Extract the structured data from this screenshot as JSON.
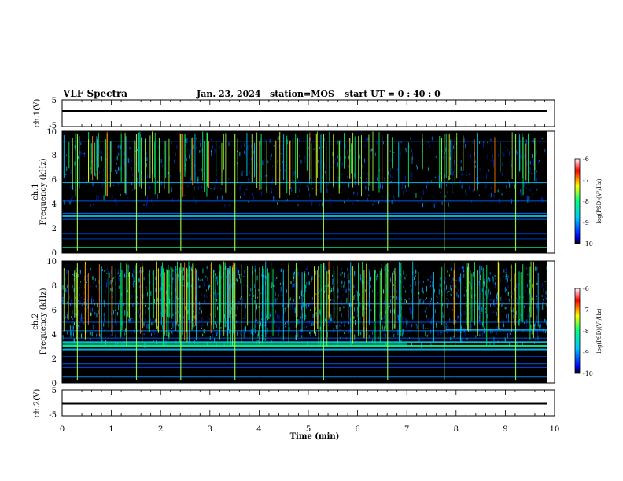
{
  "header": {
    "title": "VLF Spectra",
    "date": "Jan. 23, 2024",
    "station": "station=MOS",
    "start": "start UT =  0 : 40 : 0"
  },
  "chart_data": [
    {
      "type": "line",
      "name": "ch1-waveform",
      "ylabel": "ch.1(V)",
      "ylim": [
        -5,
        5
      ],
      "yticks": [
        "5",
        "-5"
      ],
      "xlim": [
        0,
        10
      ],
      "x": [
        0,
        9.85
      ],
      "y": [
        0,
        0
      ]
    },
    {
      "type": "heatmap",
      "name": "ch1-spectrogram",
      "ylabel_line1": "ch.1",
      "ylabel_line2": "Frequency (kHz)",
      "ylim": [
        0,
        10
      ],
      "yticks": [
        "0",
        "2",
        "4",
        "6",
        "8",
        "10"
      ],
      "xlim": [
        0,
        10
      ],
      "data_end_min": 9.85,
      "colorbar": {
        "label": "log(PSD)(V²/Hz)",
        "range": [
          -10,
          -6
        ],
        "ticks": [
          "-6",
          "-7",
          "-8",
          "-9",
          "-10"
        ],
        "colors": [
          "#000000",
          "#0000ff",
          "#00c8ff",
          "#00ff80",
          "#ffff00",
          "#ff0000",
          "#ffffff"
        ]
      }
    },
    {
      "type": "heatmap",
      "name": "ch2-spectrogram",
      "ylabel_line1": "ch.2",
      "ylabel_line2": "Frequency (kHz)",
      "ylim": [
        0,
        10
      ],
      "yticks": [
        "0",
        "2",
        "4",
        "6",
        "8",
        "10"
      ],
      "xlim": [
        0,
        10
      ],
      "data_end_min": 9.85,
      "colorbar": {
        "label": "log(PSD)(V²/Hz)",
        "range": [
          -10,
          -6
        ],
        "ticks": [
          "-6",
          "-7",
          "-8",
          "-9",
          "-10"
        ],
        "colors": [
          "#000000",
          "#0000ff",
          "#00c8ff",
          "#00ff80",
          "#ffff00",
          "#ff0000",
          "#ffffff"
        ]
      }
    },
    {
      "type": "line",
      "name": "ch2-waveform",
      "ylabel": "ch.2(V)",
      "ylim": [
        -5,
        5
      ],
      "yticks": [
        "5",
        "-5"
      ],
      "xlim": [
        0,
        10
      ],
      "x": [
        0,
        9.85
      ],
      "y": [
        0,
        0
      ]
    }
  ],
  "xaxis": {
    "label": "Time (min)",
    "ticks": [
      "0",
      "1",
      "2",
      "3",
      "4",
      "5",
      "6",
      "7",
      "8",
      "9",
      "10"
    ]
  }
}
